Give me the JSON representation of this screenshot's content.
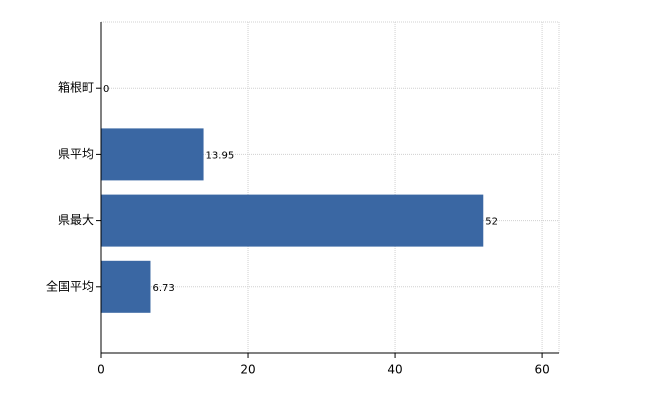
{
  "chart_data": {
    "type": "bar",
    "orientation": "horizontal",
    "categories": [
      "箱根町",
      "県平均",
      "県最大",
      "全国平均"
    ],
    "values": [
      0,
      13.95,
      52,
      6.73
    ],
    "color": "#3a67a3",
    "xlim": [
      0,
      62.3
    ],
    "xticks": [
      0,
      20,
      40,
      60
    ],
    "grid": true
  }
}
